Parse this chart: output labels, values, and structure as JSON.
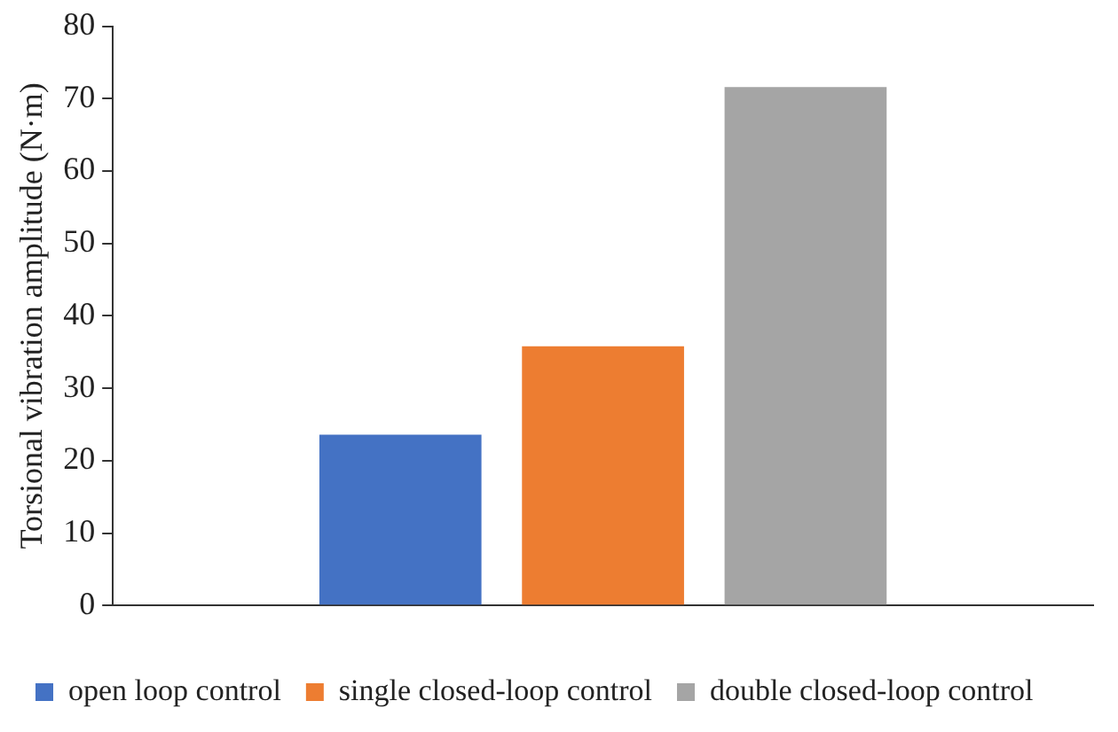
{
  "chart_data": {
    "type": "bar",
    "ylabel": "Torsional vibration amplitude (N·m)",
    "categories": [
      null
    ],
    "series": [
      {
        "name": "open loop control",
        "color": "#4472c4",
        "values": [
          23.6
        ]
      },
      {
        "name": "single closed-loop control",
        "color": "#ed7d31",
        "values": [
          35.8
        ]
      },
      {
        "name": "double closed-loop control",
        "color": "#a5a5a5",
        "values": [
          71.6
        ]
      }
    ],
    "ylim": [
      0,
      80
    ],
    "yticks": [
      0,
      10,
      20,
      30,
      40,
      50,
      60,
      70,
      80
    ],
    "grid": false,
    "legend": "bottom left"
  }
}
